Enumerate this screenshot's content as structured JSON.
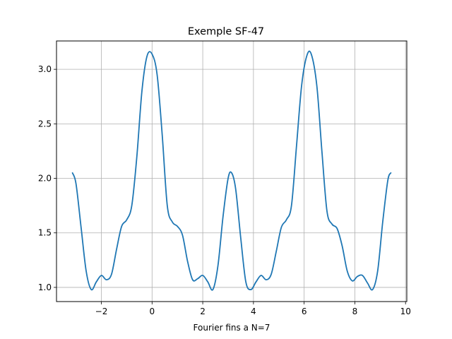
{
  "chart_data": {
    "type": "line",
    "title": "Exemple SF-47",
    "xlabel": "Fourier fins a N=7",
    "ylabel": "",
    "xlim": [
      -3.77,
      10.05
    ],
    "ylim": [
      0.87,
      3.26
    ],
    "xticks": [
      -2,
      0,
      2,
      4,
      6,
      8,
      10
    ],
    "xtick_labels": [
      "−2",
      "0",
      "2",
      "4",
      "6",
      "8",
      "10"
    ],
    "yticks": [
      1.0,
      1.5,
      2.0,
      2.5,
      3.0
    ],
    "ytick_labels": [
      "1.0",
      "1.5",
      "2.0",
      "2.5",
      "3.0"
    ],
    "grid": true,
    "legend": "none",
    "series": [
      {
        "color": "#1f77b4",
        "x": [
          -3.14,
          -3.0,
          -2.8,
          -2.6,
          -2.4,
          -2.2,
          -2.0,
          -1.8,
          -1.6,
          -1.4,
          -1.2,
          -1.0,
          -0.8,
          -0.6,
          -0.4,
          -0.2,
          0.0,
          0.2,
          0.4,
          0.6,
          0.8,
          1.0,
          1.2,
          1.4,
          1.6,
          1.8,
          2.0,
          2.2,
          2.4,
          2.6,
          2.8,
          3.0,
          3.14,
          3.3,
          3.5,
          3.7,
          3.9,
          4.1,
          4.3,
          4.5,
          4.7,
          4.9,
          5.1,
          5.3,
          5.5,
          5.7,
          5.9,
          6.1,
          6.28,
          6.5,
          6.7,
          6.9,
          7.1,
          7.3,
          7.5,
          7.7,
          7.9,
          8.1,
          8.3,
          8.5,
          8.7,
          8.9,
          9.1,
          9.3,
          9.42
        ],
        "y": [
          2.05,
          1.95,
          1.55,
          1.15,
          0.98,
          1.05,
          1.11,
          1.07,
          1.12,
          1.35,
          1.56,
          1.62,
          1.75,
          2.2,
          2.8,
          3.12,
          3.14,
          2.95,
          2.4,
          1.75,
          1.6,
          1.56,
          1.48,
          1.24,
          1.07,
          1.08,
          1.11,
          1.05,
          0.98,
          1.2,
          1.65,
          2.0,
          2.05,
          1.9,
          1.45,
          1.05,
          0.98,
          1.05,
          1.11,
          1.07,
          1.12,
          1.33,
          1.55,
          1.62,
          1.75,
          2.3,
          2.85,
          3.12,
          3.14,
          2.85,
          2.25,
          1.7,
          1.58,
          1.54,
          1.38,
          1.15,
          1.06,
          1.1,
          1.11,
          1.04,
          0.98,
          1.15,
          1.6,
          1.98,
          2.05
        ]
      }
    ]
  }
}
